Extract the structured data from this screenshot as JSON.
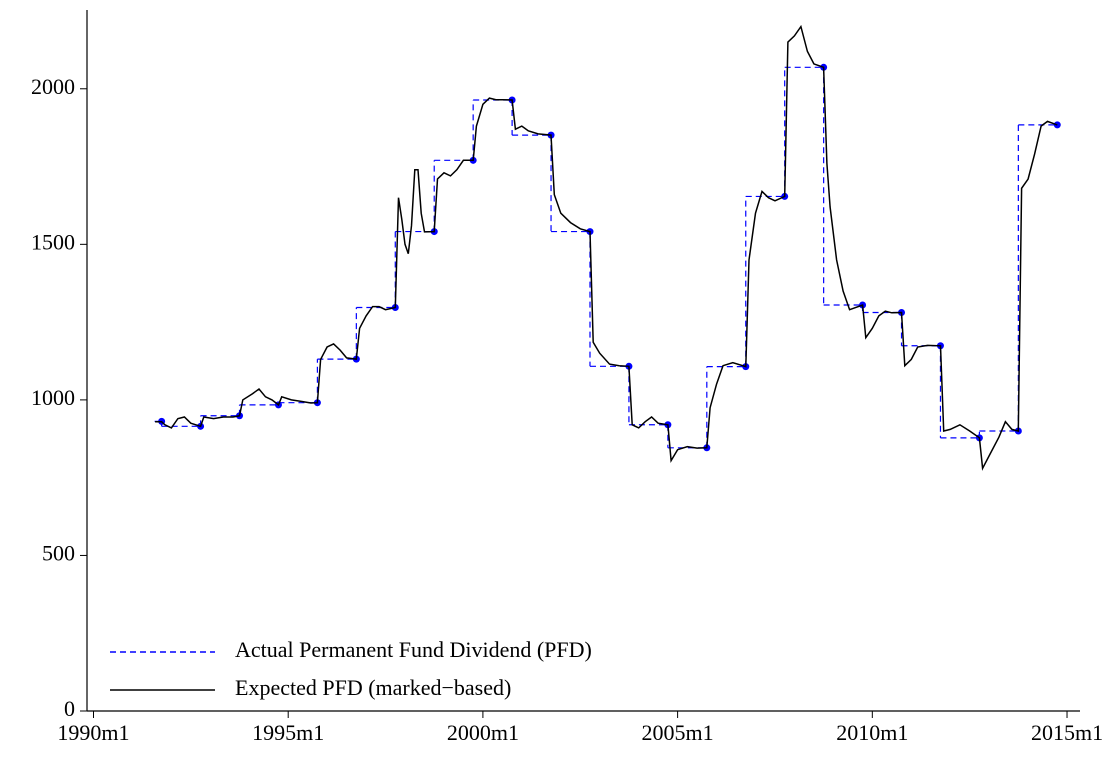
{
  "chart_data": {
    "type": "line",
    "xlim": [
      "1989m11",
      "2015m5"
    ],
    "xticks": [
      "1990m1",
      "1995m1",
      "2000m1",
      "2005m1",
      "2010m1",
      "2015m1"
    ],
    "ylim": [
      0,
      2250
    ],
    "yticks": [
      0,
      500,
      1000,
      1500,
      2000
    ],
    "legend": "lower left",
    "series": [
      {
        "name": "Actual Permanent Fund Dividend (PFD)",
        "color": "#0000ff",
        "dashed": true,
        "step": true,
        "markers": true,
        "x": [
          "1991m10",
          "1992m10",
          "1993m10",
          "1994m10",
          "1995m10",
          "1996m10",
          "1997m10",
          "1998m10",
          "1999m10",
          "2000m10",
          "2001m10",
          "2002m10",
          "2003m10",
          "2004m10",
          "2005m10",
          "2006m10",
          "2007m10",
          "2008m10",
          "2009m10",
          "2010m10",
          "2011m10",
          "2012m10",
          "2013m10",
          "2014m10"
        ],
        "values": [
          931,
          915,
          949,
          984,
          991,
          1131,
          1297,
          1541,
          1770,
          1964,
          1851,
          1541,
          1108,
          920,
          846,
          1107,
          1654,
          2069,
          1305,
          1281,
          1174,
          878,
          900,
          1884
        ]
      },
      {
        "name": "Expected PFD (marked−based)",
        "color": "#000000",
        "dashed": false,
        "step": false,
        "markers": false,
        "x": [
          "1991m8",
          "1991m10",
          "1991m11",
          "1992m1",
          "1992m3",
          "1992m5",
          "1992m7",
          "1992m10",
          "1992m11",
          "1993m2",
          "1993m5",
          "1993m8",
          "1993m10",
          "1993m11",
          "1994m2",
          "1994m4",
          "1994m6",
          "1994m8",
          "1994m10",
          "1994m11",
          "1995m2",
          "1995m5",
          "1995m8",
          "1995m10",
          "1995m11",
          "1996m1",
          "1996m3",
          "1996m5",
          "1996m7",
          "1996m10",
          "1996m11",
          "1997m1",
          "1997m3",
          "1997m5",
          "1997m7",
          "1997m10",
          "1997m11",
          "1997m12",
          "1998m1",
          "1998m2",
          "1998m3",
          "1998m4",
          "1998m5",
          "1998m6",
          "1998m7",
          "1998m10",
          "1998m11",
          "1999m1",
          "1999m3",
          "1999m5",
          "1999m7",
          "1999m10",
          "1999m11",
          "2000m1",
          "2000m3",
          "2000m5",
          "2000m7",
          "2000m10",
          "2000m11",
          "2001m1",
          "2001m3",
          "2001m6",
          "2001m10",
          "2001m11",
          "2002m1",
          "2002m4",
          "2002m7",
          "2002m10",
          "2002m11",
          "2003m1",
          "2003m4",
          "2003m7",
          "2003m10",
          "2003m11",
          "2004m1",
          "2004m3",
          "2004m5",
          "2004m7",
          "2004m10",
          "2004m11",
          "2005m1",
          "2005m4",
          "2005m7",
          "2005m10",
          "2005m11",
          "2006m1",
          "2006m3",
          "2006m6",
          "2006m10",
          "2006m11",
          "2007m1",
          "2007m3",
          "2007m5",
          "2007m7",
          "2007m10",
          "2007m11",
          "2008m1",
          "2008m3",
          "2008m5",
          "2008m7",
          "2008m10",
          "2008m11",
          "2008m12",
          "2009m2",
          "2009m4",
          "2009m6",
          "2009m10",
          "2009m11",
          "2010m1",
          "2010m3",
          "2010m5",
          "2010m7",
          "2010m10",
          "2010m11",
          "2011m1",
          "2011m3",
          "2011m6",
          "2011m10",
          "2011m11",
          "2012m1",
          "2012m4",
          "2012m7",
          "2012m10",
          "2012m11",
          "2013m1",
          "2013m4",
          "2013m6",
          "2013m8",
          "2013m10",
          "2013m11",
          "2014m1",
          "2014m3",
          "2014m5",
          "2014m7",
          "2014m10"
        ],
        "values": [
          930,
          930,
          920,
          910,
          940,
          945,
          925,
          915,
          945,
          940,
          945,
          945,
          949,
          1000,
          1020,
          1035,
          1010,
          1000,
          984,
          1010,
          1000,
          995,
          990,
          991,
          1130,
          1170,
          1180,
          1160,
          1135,
          1131,
          1230,
          1270,
          1300,
          1300,
          1290,
          1297,
          1650,
          1580,
          1500,
          1470,
          1560,
          1740,
          1740,
          1600,
          1540,
          1541,
          1710,
          1730,
          1720,
          1740,
          1770,
          1770,
          1880,
          1950,
          1970,
          1965,
          1965,
          1964,
          1870,
          1880,
          1865,
          1855,
          1851,
          1660,
          1600,
          1570,
          1550,
          1541,
          1185,
          1150,
          1115,
          1110,
          1108,
          920,
          910,
          930,
          945,
          925,
          920,
          805,
          840,
          850,
          845,
          846,
          975,
          1050,
          1110,
          1120,
          1107,
          1450,
          1600,
          1670,
          1650,
          1640,
          1654,
          2150,
          2170,
          2200,
          2120,
          2080,
          2069,
          1760,
          1620,
          1450,
          1350,
          1290,
          1305,
          1200,
          1230,
          1270,
          1285,
          1280,
          1281,
          1110,
          1130,
          1170,
          1175,
          1174,
          900,
          905,
          920,
          900,
          878,
          780,
          820,
          880,
          930,
          905,
          900,
          1680,
          1710,
          1790,
          1880,
          1895,
          1884
        ]
      }
    ]
  }
}
